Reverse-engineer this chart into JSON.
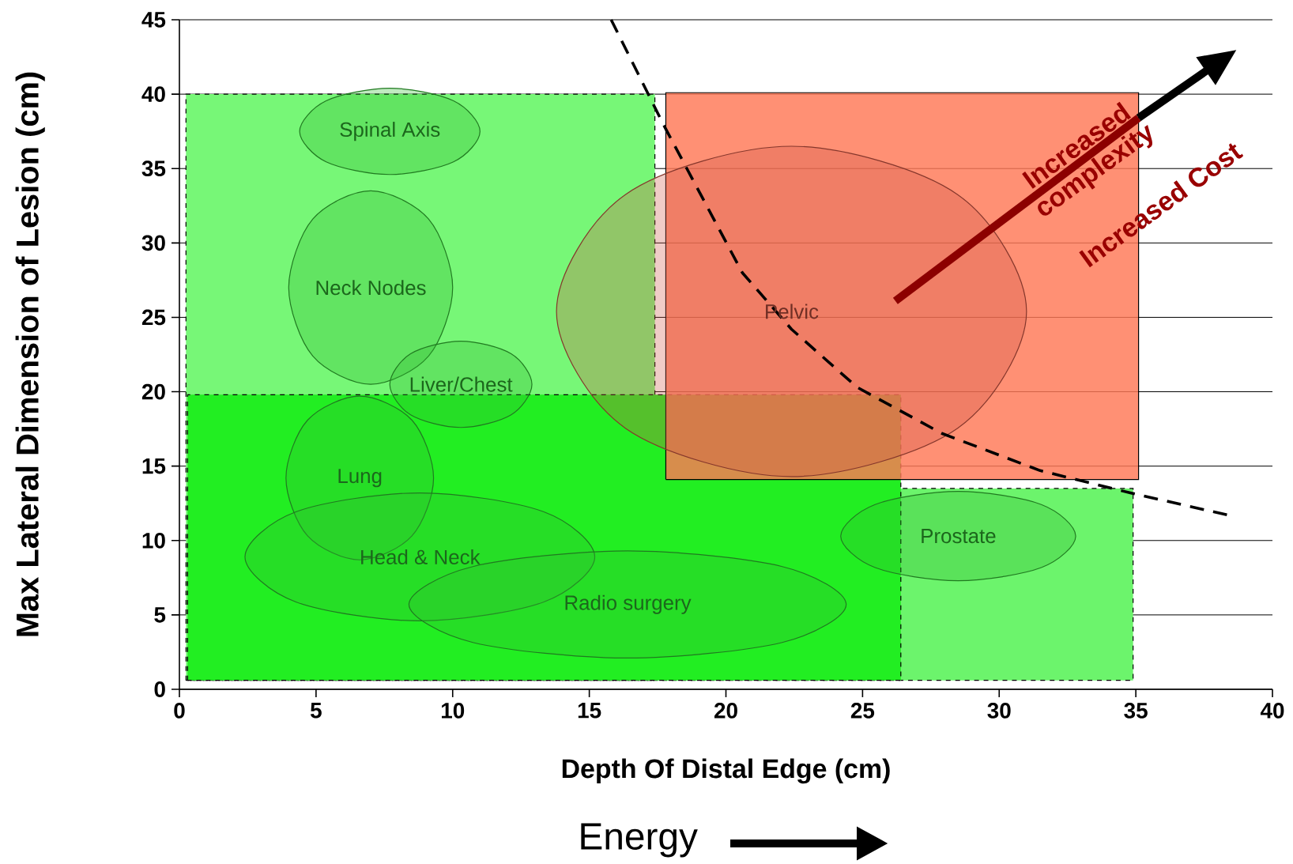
{
  "chart_data": {
    "type": "area",
    "xlabel": "Depth Of Distal Edge (cm)",
    "ylabel": "Max Lateral Dimension of Lesion (cm)",
    "xlim": [
      0,
      40
    ],
    "ylim": [
      0,
      45
    ],
    "xticks": [
      0,
      5,
      10,
      15,
      20,
      25,
      30,
      35,
      40
    ],
    "yticks": [
      0,
      5,
      10,
      15,
      20,
      25,
      30,
      35,
      40,
      45
    ],
    "grid": "y",
    "series": [
      {
        "color": "#77f777",
        "line_style": "dashed",
        "x": [
          0.24,
          0.24,
          17.4,
          17.4,
          0.24
        ],
        "values": [
          0.6,
          40,
          40,
          0.6,
          0.6
        ]
      },
      {
        "color": "#6cf46c",
        "line_style": "dashed",
        "x": [
          0.3,
          0.3,
          34.9,
          34.9,
          0.3
        ],
        "values": [
          0.6,
          13.5,
          13.5,
          0.6,
          0.6
        ]
      },
      {
        "color": "#22ee22",
        "line_style": "dashed",
        "x": [
          0.3,
          0.3,
          26.4,
          26.4,
          0.3
        ],
        "values": [
          0.6,
          19.8,
          19.8,
          0.6,
          0.6
        ]
      },
      {
        "color": "#ff7755",
        "line_style": "solid",
        "x": [
          17.8,
          17.8,
          35.1,
          35.1,
          17.8
        ],
        "values": [
          14.1,
          40.1,
          40.1,
          14.1,
          14.1
        ]
      },
      {
        "color": "#33bb33",
        "x": [
          11.0,
          10.03,
          7.7,
          5.37,
          4.4,
          5.37,
          7.7,
          10.03
        ],
        "values": [
          37.5,
          39.55,
          40.4,
          39.55,
          37.5,
          35.45,
          34.6,
          35.45
        ]
      },
      {
        "color": "#33bb33",
        "x": [
          10.0,
          9.12,
          7.0,
          4.88,
          4.0,
          4.88,
          7.0,
          9.12
        ],
        "values": [
          27.0,
          31.6,
          33.5,
          31.6,
          27.0,
          22.4,
          20.5,
          22.4
        ]
      },
      {
        "color": "#33bb33",
        "x": [
          12.9,
          12.14,
          10.3,
          8.46,
          7.7,
          8.46,
          10.3,
          12.14
        ],
        "values": [
          20.5,
          22.55,
          23.4,
          22.55,
          20.5,
          18.45,
          17.6,
          18.45
        ]
      },
      {
        "color": "#33bb33",
        "x": [
          9.3,
          8.51,
          6.6,
          4.69,
          3.9,
          4.69,
          6.6,
          8.51
        ],
        "values": [
          14.2,
          18.09,
          19.7,
          18.09,
          14.2,
          10.31,
          8.7,
          10.31
        ]
      },
      {
        "color": "#33bb33",
        "x": [
          15.2,
          13.32,
          8.8,
          4.28,
          2.4,
          4.28,
          8.8,
          13.32
        ],
        "values": [
          8.9,
          11.94,
          13.2,
          11.94,
          8.9,
          5.86,
          4.6,
          5.86
        ]
      },
      {
        "color": "#33bb33",
        "x": [
          24.4,
          22.06,
          16.4,
          10.74,
          8.4,
          10.74,
          16.4,
          22.06
        ],
        "values": [
          5.7,
          8.25,
          9.3,
          8.25,
          5.7,
          3.15,
          2.1,
          3.15
        ]
      },
      {
        "color": "#cc5544",
        "x": [
          31.0,
          28.48,
          22.4,
          16.32,
          13.8,
          16.32,
          22.4,
          28.48
        ],
        "values": [
          25.4,
          33.25,
          36.5,
          33.25,
          25.4,
          17.55,
          14.3,
          17.55
        ]
      },
      {
        "color": "#33bb33",
        "x": [
          32.8,
          31.54,
          28.5,
          25.46,
          24.2,
          25.46,
          28.5,
          31.54
        ],
        "values": [
          10.3,
          12.42,
          13.3,
          12.42,
          10.3,
          8.18,
          7.3,
          8.18
        ]
      },
      {
        "type": "line",
        "color": "#000000",
        "line_style": "dashed",
        "x": [
          15.8,
          17.7,
          20.6,
          22.4,
          24.8,
          27.9,
          31.5,
          34.8,
          38.4
        ],
        "values": [
          45,
          38,
          28,
          24.2,
          20.3,
          17.2,
          14.7,
          13.2,
          11.7
        ]
      }
    ],
    "annotations": [
      "Spinal Axis",
      "Neck Nodes",
      "Liver/Chest",
      "Lung",
      "Head & Neck",
      "Radio surgery",
      "Pelvic",
      "Prostate",
      "Increased complexity",
      "Increased Cost",
      "Energy"
    ]
  }
}
